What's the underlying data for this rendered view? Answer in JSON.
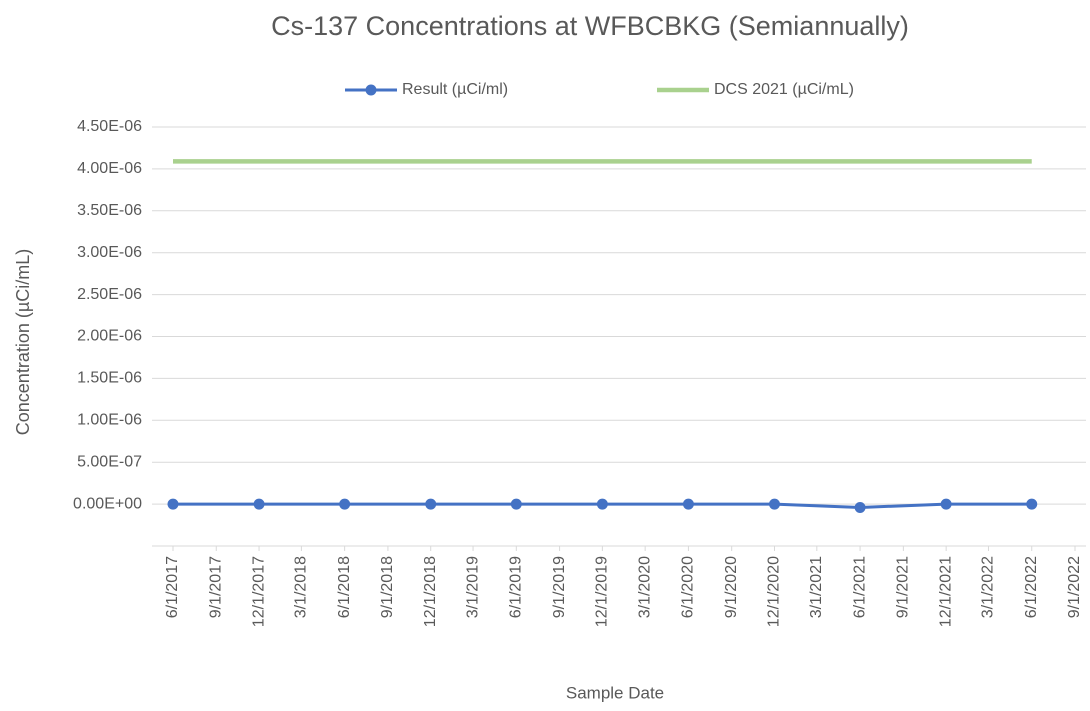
{
  "chart_data": {
    "type": "line",
    "title": "Cs-137 Concentrations at WFBCBKG (Semiannually)",
    "x_label": "Sample Date",
    "y_label": "Concentration (µCi/mL)",
    "x": [
      "6/1/2017",
      "12/1/2017",
      "6/1/2018",
      "12/1/2018",
      "6/1/2019",
      "12/1/2019",
      "6/1/2020",
      "12/1/2020",
      "6/1/2021",
      "12/1/2021",
      "6/1/2022"
    ],
    "series": [
      {
        "name": "Result (µCi/ml)",
        "color": "#4472c4",
        "marker": true,
        "values": [
          0,
          0,
          0,
          0,
          0,
          0,
          0,
          0,
          -4e-08,
          0,
          0
        ]
      },
      {
        "name": "DCS 2021 (µCi/mL)",
        "color": "#a9d18e",
        "marker": false,
        "values": [
          4.09e-06,
          4.09e-06,
          4.09e-06,
          4.09e-06,
          4.09e-06,
          4.09e-06,
          4.09e-06,
          4.09e-06,
          4.09e-06,
          4.09e-06,
          4.09e-06
        ]
      }
    ],
    "xlim": [
      "6/1/2017",
      "9/1/2022"
    ],
    "xticks": [
      "6/1/2017",
      "9/1/2017",
      "12/1/2017",
      "3/1/2018",
      "6/1/2018",
      "9/1/2018",
      "12/1/2018",
      "3/1/2019",
      "6/1/2019",
      "9/1/2019",
      "12/1/2019",
      "3/1/2020",
      "6/1/2020",
      "9/1/2020",
      "12/1/2020",
      "3/1/2021",
      "6/1/2021",
      "9/1/2021",
      "12/1/2021",
      "3/1/2022",
      "6/1/2022",
      "9/1/2022"
    ],
    "ylim": [
      -5e-07,
      4.5e-06
    ],
    "yticks": [
      {
        "value": 0,
        "label": "0.00E+00"
      },
      {
        "value": 5e-07,
        "label": "5.00E-07"
      },
      {
        "value": 1e-06,
        "label": "1.00E-06"
      },
      {
        "value": 1.5e-06,
        "label": "1.50E-06"
      },
      {
        "value": 2e-06,
        "label": "2.00E-06"
      },
      {
        "value": 2.5e-06,
        "label": "2.50E-06"
      },
      {
        "value": 3e-06,
        "label": "3.00E-06"
      },
      {
        "value": 3.5e-06,
        "label": "3.50E-06"
      },
      {
        "value": 4e-06,
        "label": "4.00E-06"
      },
      {
        "value": 4.5e-06,
        "label": "4.50E-06"
      }
    ],
    "grid": true,
    "legend": "top"
  }
}
